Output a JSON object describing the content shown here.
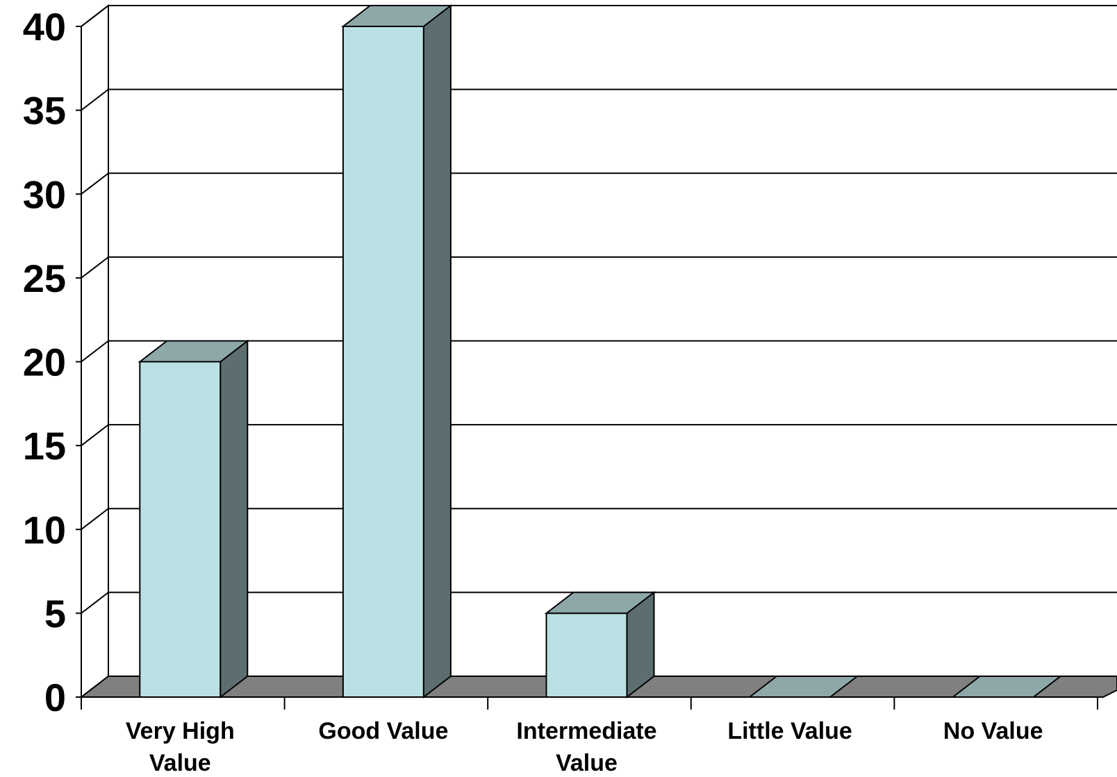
{
  "chart_data": {
    "type": "bar",
    "style": "3d-column",
    "categories": [
      "Very High Value",
      "Good Value",
      "Intermediate Value",
      "Little Value",
      "No Value"
    ],
    "category_lines": [
      [
        "Very High",
        "Value"
      ],
      [
        "Good Value"
      ],
      [
        "Intermediate",
        "Value"
      ],
      [
        "Little Value"
      ],
      [
        "No Value"
      ]
    ],
    "values": [
      20,
      40,
      5,
      0,
      0
    ],
    "yticks": [
      "0",
      "5",
      "10",
      "15",
      "20",
      "25",
      "30",
      "35",
      "40"
    ],
    "ylim": [
      0,
      40
    ],
    "grid": true,
    "title": "",
    "xlabel": "",
    "ylabel": "",
    "colors": {
      "bar_front": "#bbe0e3",
      "bar_top": "#8ea8aa",
      "bar_side": "#5c6e70",
      "floor": "#808080",
      "grid": "#000000"
    }
  }
}
